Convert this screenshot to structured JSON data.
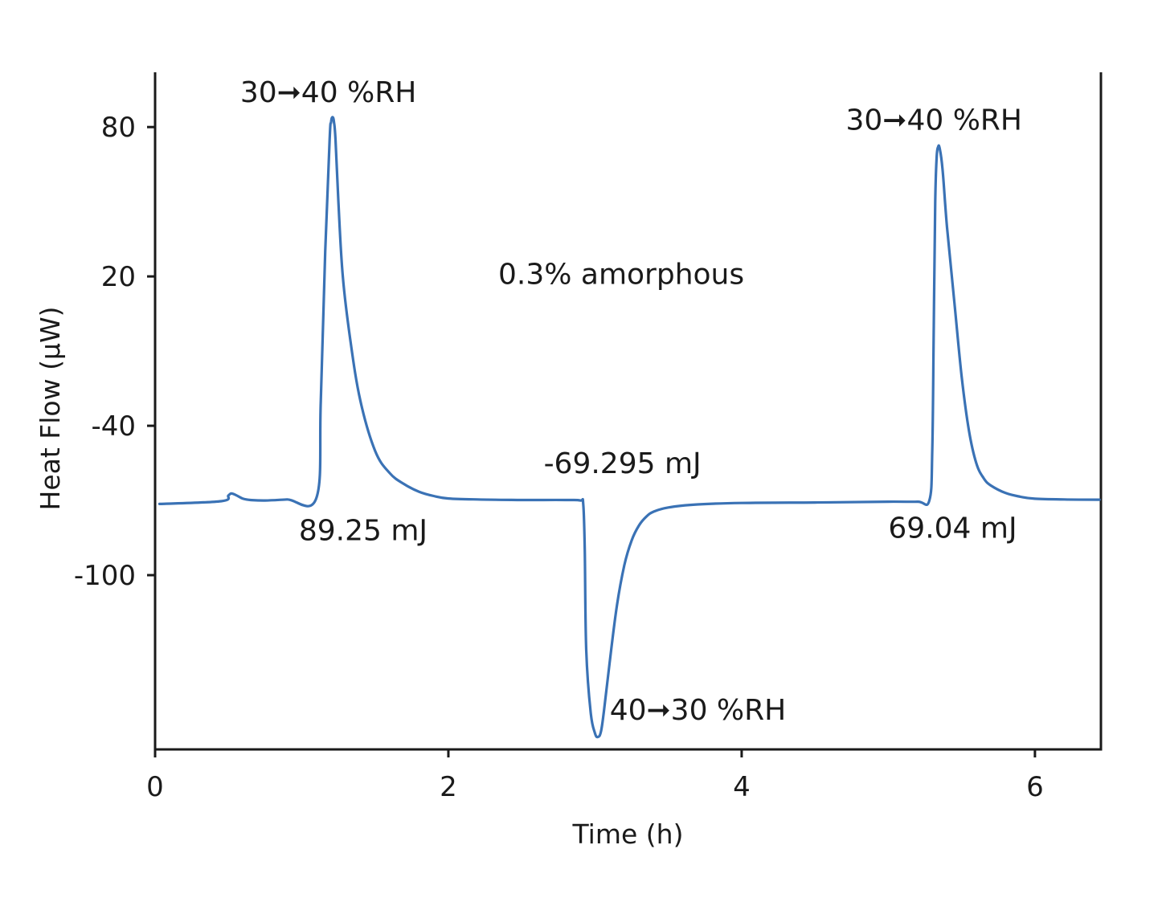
{
  "chart_data": {
    "type": "line",
    "title": "",
    "xlabel": "Time (h)",
    "ylabel": "Heat Flow (µW)",
    "xlim": [
      0,
      6.45
    ],
    "ylim": [
      -170,
      102
    ],
    "xticks": [
      0,
      2,
      4,
      6
    ],
    "yticks": [
      80,
      20,
      -40,
      -100
    ],
    "grid": false,
    "line_color": "#3a72b5",
    "series": [
      {
        "x": [
          0.03,
          0.45,
          0.5,
          0.52,
          0.55,
          0.6,
          0.65,
          0.75,
          0.9,
          1.1,
          1.13,
          1.16,
          1.19,
          1.2,
          1.21,
          1.22,
          1.23,
          1.25,
          1.28,
          1.33,
          1.4,
          1.5,
          1.6,
          1.7,
          1.8,
          1.9,
          2.0,
          2.2,
          2.5,
          2.8,
          2.9,
          2.92,
          2.93,
          2.94,
          2.97,
          3.0,
          3.02,
          3.04,
          3.06,
          3.1,
          3.15,
          3.2,
          3.25,
          3.3,
          3.35,
          3.4,
          3.5,
          3.7,
          4.0,
          4.5,
          5.0,
          5.2,
          5.28,
          5.3,
          5.31,
          5.32,
          5.33,
          5.34,
          5.35,
          5.37,
          5.4,
          5.45,
          5.5,
          5.55,
          5.6,
          5.65,
          5.7,
          5.8,
          5.9,
          6.0,
          6.2,
          6.44
        ],
        "y": [
          -71.4,
          -70.3,
          -68.0,
          -67.2,
          -67.8,
          -69.3,
          -69.8,
          -70.0,
          -69.6,
          -69.0,
          -30.0,
          30.0,
          75.0,
          82.0,
          84.0,
          82.0,
          75.0,
          50.0,
          20.0,
          -5.0,
          -30.0,
          -50.0,
          -59.0,
          -63.5,
          -66.5,
          -68.2,
          -69.2,
          -69.6,
          -69.8,
          -69.8,
          -70.0,
          -71.5,
          -90.0,
          -130.0,
          -155.0,
          -163.5,
          -165.0,
          -163.0,
          -155.0,
          -135.0,
          -112.0,
          -96.0,
          -86.0,
          -80.0,
          -76.5,
          -74.5,
          -72.8,
          -71.6,
          -71.0,
          -70.8,
          -70.5,
          -70.5,
          -70.0,
          -50.0,
          0.0,
          50.0,
          68.0,
          72.0,
          71.5,
          63.0,
          40.0,
          10.0,
          -20.0,
          -42.0,
          -55.0,
          -61.0,
          -64.0,
          -67.0,
          -68.5,
          -69.3,
          -69.6,
          -69.7
        ]
      }
    ],
    "annotations": [
      {
        "text": "30➞40 %RH",
        "x": 0.58,
        "y": 90
      },
      {
        "text": "89.25 mJ",
        "x": 0.98,
        "y": -86
      },
      {
        "text": "0.3% amorphous",
        "x": 2.34,
        "y": 17
      },
      {
        "text": "-69.295 mJ",
        "x": 2.65,
        "y": -59
      },
      {
        "text": "40➞30 %RH",
        "x": 3.1,
        "y": -158
      },
      {
        "text": "30➞40 %RH",
        "x": 4.71,
        "y": 79
      },
      {
        "text": "69.04 mJ",
        "x": 5.0,
        "y": -85
      }
    ]
  }
}
